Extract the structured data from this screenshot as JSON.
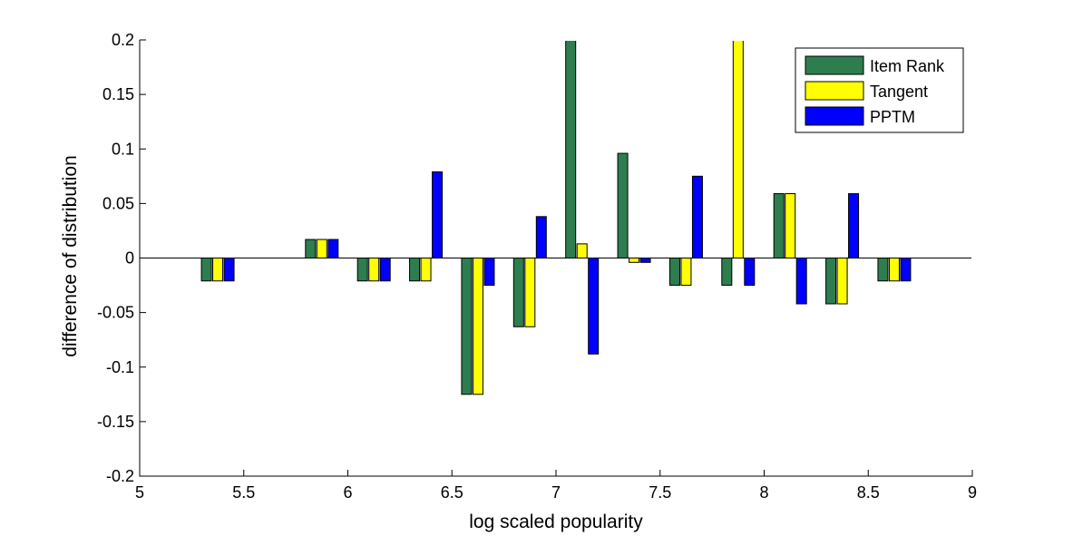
{
  "chart_data": {
    "type": "bar",
    "title": "",
    "xlabel": "log scaled popularity",
    "ylabel": "difference of distribution",
    "xlim": [
      5,
      9
    ],
    "ylim": [
      -0.2,
      0.2
    ],
    "xticks": [
      "5",
      "5.5",
      "6",
      "6.5",
      "7",
      "7.5",
      "8",
      "8.5",
      "9"
    ],
    "yticks": [
      "-0.2",
      "-0.15",
      "-0.1",
      "-0.05",
      "0",
      "0.05",
      "0.1",
      "0.15",
      "0.2"
    ],
    "grid": false,
    "legend_position": "top-right",
    "x": [
      5.375,
      5.875,
      6.125,
      6.375,
      6.625,
      6.875,
      7.125,
      7.375,
      7.625,
      7.875,
      8.125,
      8.375,
      8.625
    ],
    "series": [
      {
        "name": "Item Rank",
        "color": "#2e7d4f",
        "values": [
          -0.021,
          0.017,
          -0.021,
          -0.021,
          -0.125,
          -0.063,
          0.2,
          0.096,
          -0.025,
          -0.025,
          0.059,
          -0.042,
          -0.021
        ]
      },
      {
        "name": "Tangent",
        "color": "#ffff00",
        "values": [
          -0.021,
          0.017,
          -0.021,
          -0.021,
          -0.125,
          -0.063,
          0.013,
          -0.004,
          -0.025,
          0.2,
          0.059,
          -0.042,
          -0.021
        ]
      },
      {
        "name": "PPTM",
        "color": "#0000ff",
        "values": [
          -0.021,
          0.017,
          -0.021,
          0.079,
          -0.025,
          0.038,
          -0.088,
          -0.004,
          0.075,
          -0.025,
          -0.042,
          0.059,
          -0.021
        ]
      }
    ]
  }
}
